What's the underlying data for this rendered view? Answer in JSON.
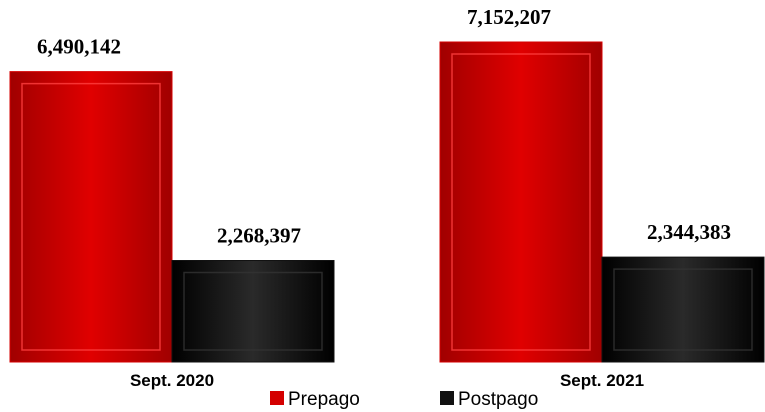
{
  "chart_data": {
    "type": "bar",
    "categories": [
      "Sept. 2020",
      "Sept. 2021"
    ],
    "series": [
      {
        "name": "Prepago",
        "color": "#d40000",
        "values": [
          6490142,
          7152207
        ],
        "value_labels": [
          "6,490,142",
          "7,152,207"
        ]
      },
      {
        "name": "Postpago",
        "color": "#111111",
        "values": [
          2268397,
          2344383
        ],
        "value_labels": [
          "2,268,397",
          "2,344,383"
        ]
      }
    ]
  }
}
